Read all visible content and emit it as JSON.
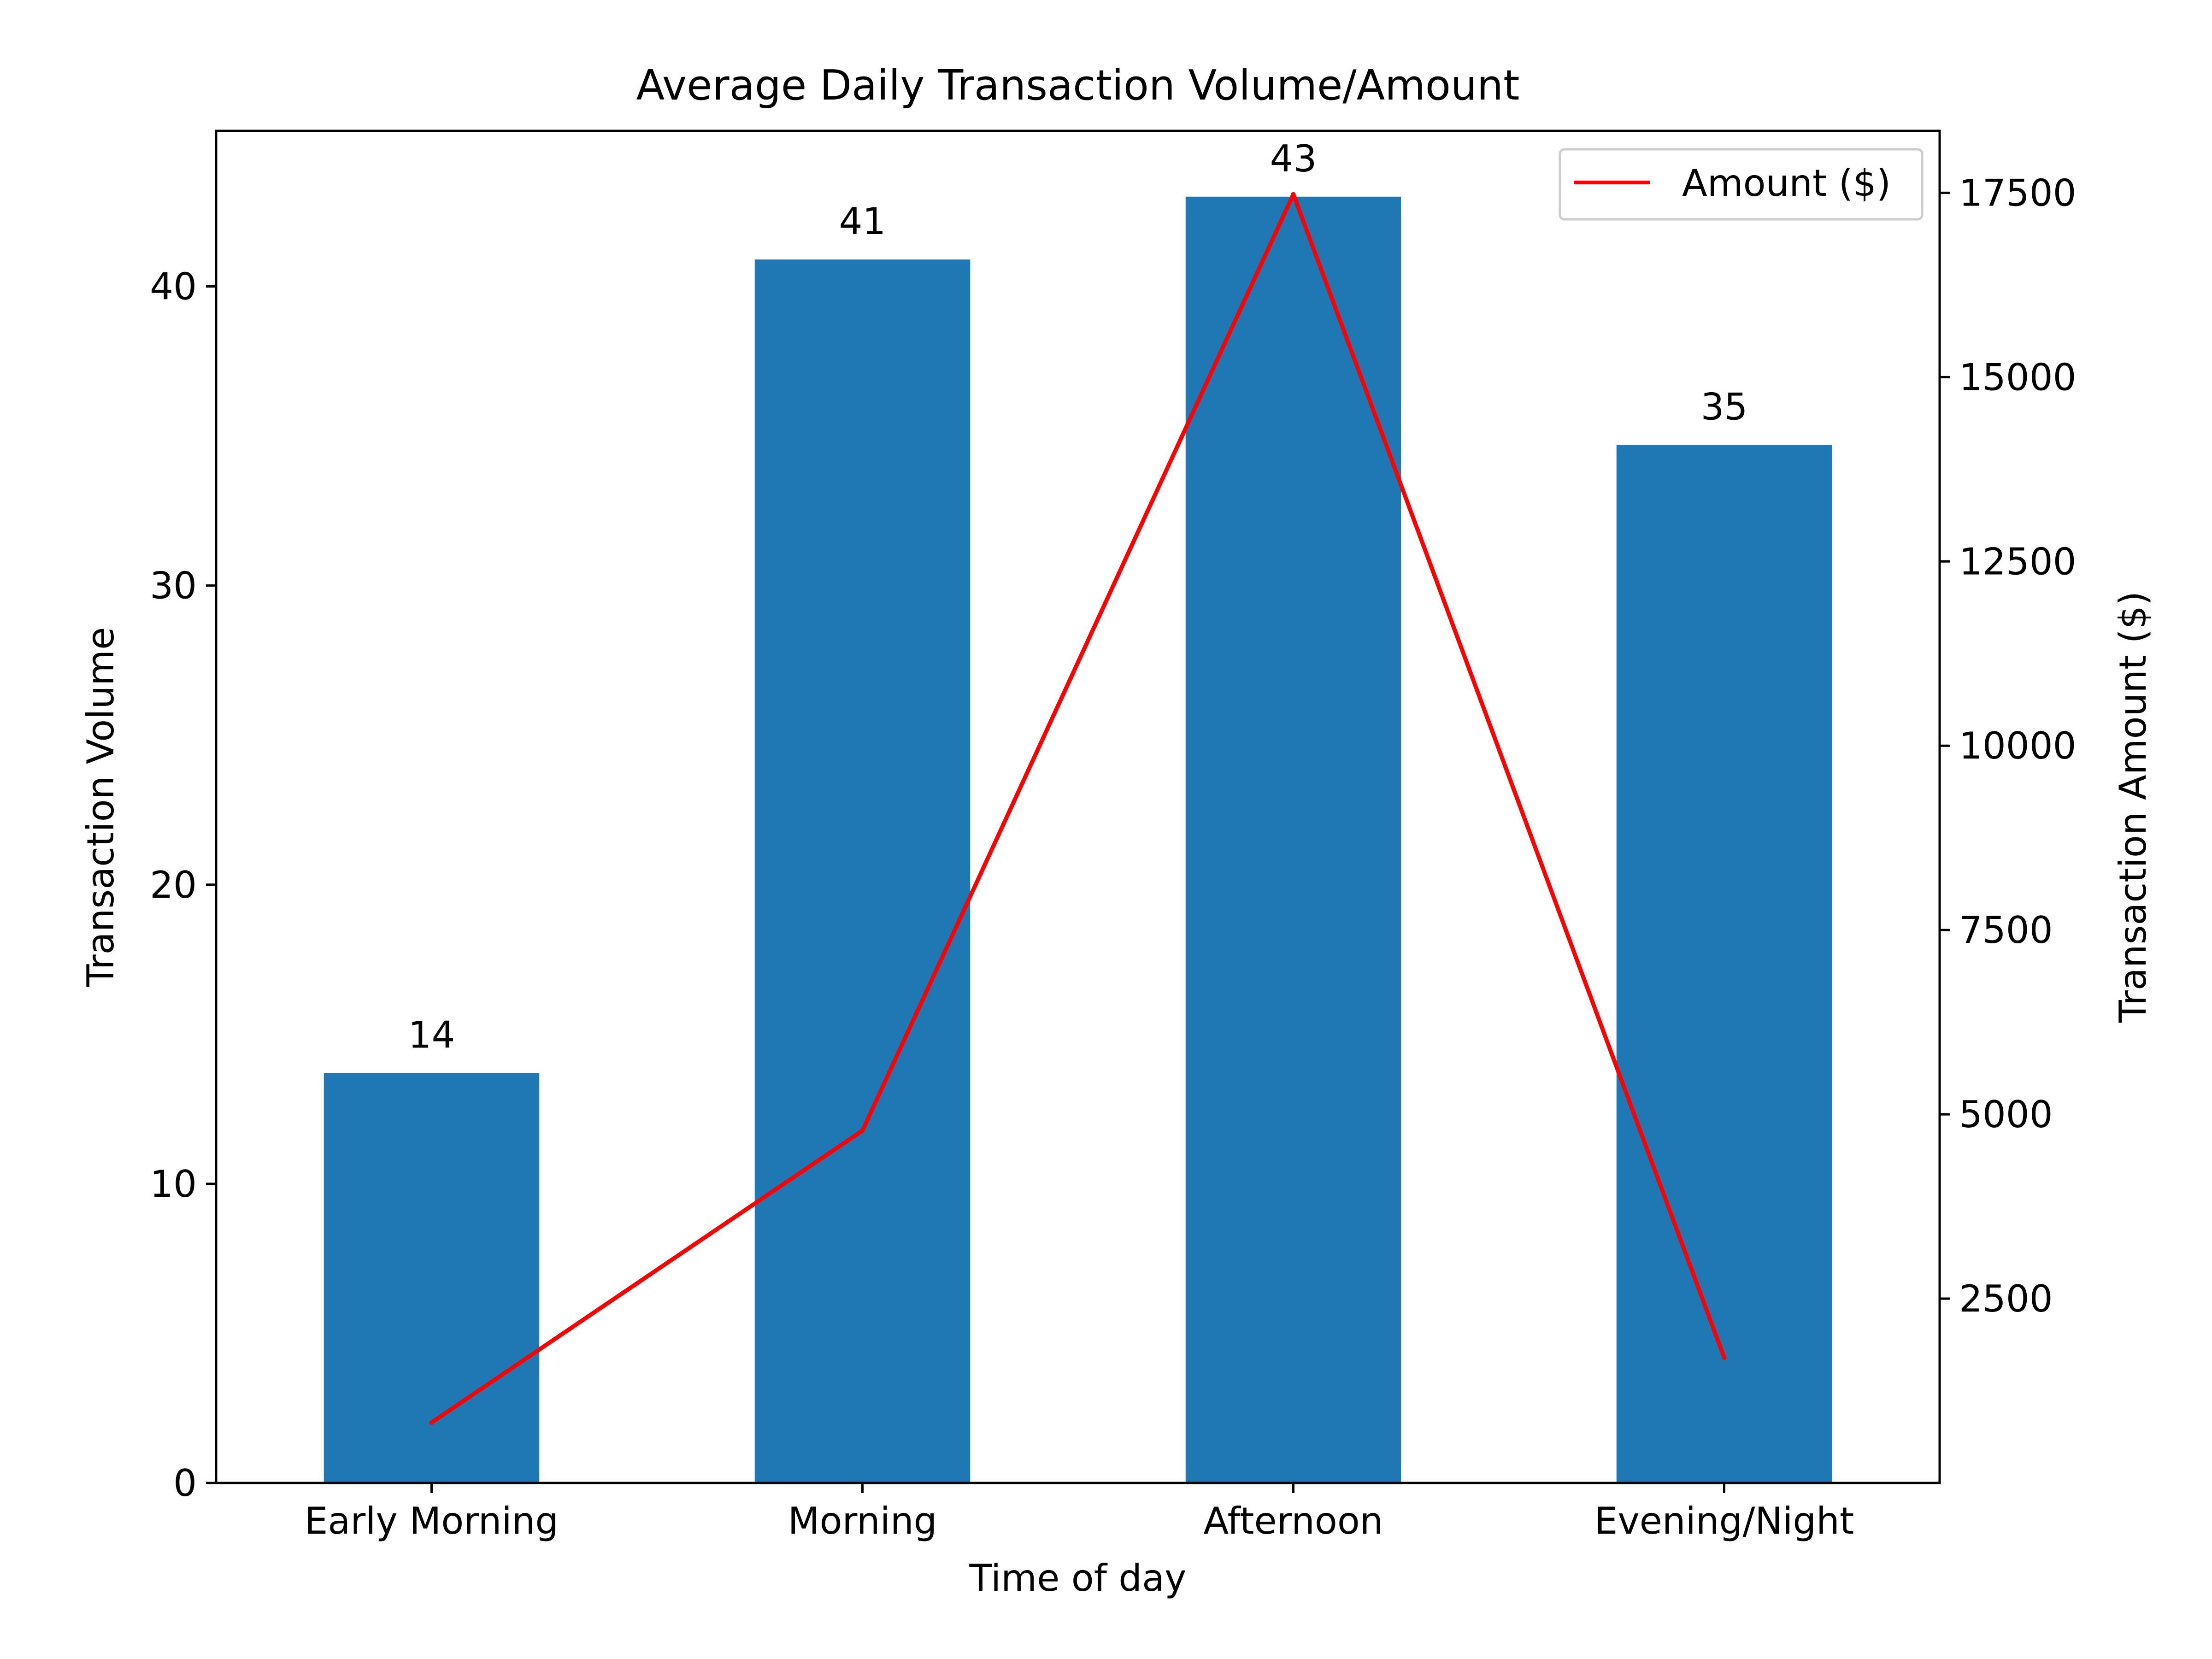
{
  "chart_data": {
    "type": "bar",
    "title": "Average Daily Transaction Volume/Amount",
    "xlabel": "Time of day",
    "ylabel": "Transaction Volume",
    "y2label": "Transaction Amount ($)",
    "categories": [
      "Early Morning",
      "Morning",
      "Afternoon",
      "Evening/Night"
    ],
    "series": [
      {
        "type": "bar",
        "axis": "left",
        "values": [
          13.7,
          40.9,
          43.0,
          34.7
        ],
        "data_labels": [
          "14",
          "41",
          "43",
          "35"
        ],
        "color": "#1f77b4"
      },
      {
        "type": "line",
        "axis": "right",
        "name": "Amount ($)",
        "values": [
          820,
          4780,
          17480,
          1700
        ],
        "color": "#ff0000"
      }
    ],
    "ylim": [
      0,
      45.2
    ],
    "y2lim": [
      0,
      18340
    ],
    "yticks": [
      0,
      10,
      20,
      30,
      40
    ],
    "y2ticks": [
      2500,
      5000,
      7500,
      10000,
      12500,
      15000,
      17500
    ],
    "legend": {
      "placement": "upper right",
      "entries": [
        "Amount ($)"
      ]
    },
    "grid": false
  }
}
